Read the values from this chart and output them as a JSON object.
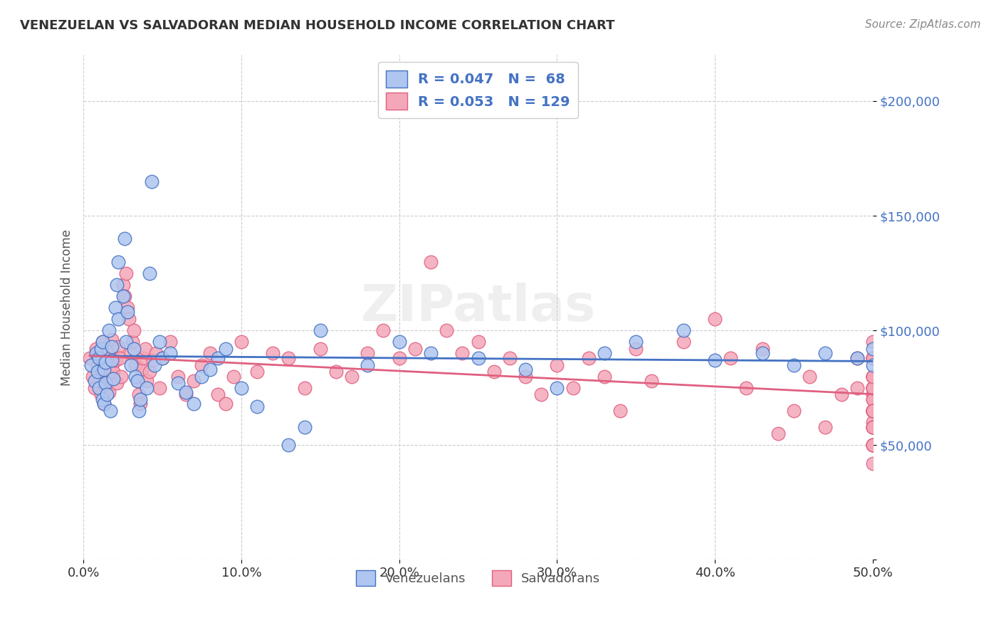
{
  "title": "VENEZUELAN VS SALVADORAN MEDIAN HOUSEHOLD INCOME CORRELATION CHART",
  "source": "Source: ZipAtlas.com",
  "xlabel": "",
  "ylabel": "Median Household Income",
  "xlim": [
    0,
    0.5
  ],
  "ylim": [
    0,
    220000
  ],
  "xtick_labels": [
    "0.0%",
    "10.0%",
    "20.0%",
    "30.0%",
    "40.0%",
    "50.0%"
  ],
  "xtick_vals": [
    0.0,
    0.1,
    0.2,
    0.3,
    0.4,
    0.5
  ],
  "ytick_vals": [
    0,
    50000,
    100000,
    150000,
    200000
  ],
  "ytick_labels": [
    "",
    "$50,000",
    "$100,000",
    "$150,000",
    "$200,000"
  ],
  "venezuelan_color": "#aec6f0",
  "salvadoran_color": "#f4a7b9",
  "venezuelan_line_color": "#4472c4",
  "salvadoran_line_color": "#e06080",
  "watermark": "ZIPatlas",
  "legend_R_venezuelan": "R = 0.047",
  "legend_N_venezuelan": "N =  68",
  "legend_R_salvadoran": "R = 0.053",
  "legend_N_salvadoran": "N = 129",
  "venezuelan_x": [
    0.005,
    0.007,
    0.008,
    0.009,
    0.01,
    0.01,
    0.011,
    0.012,
    0.012,
    0.013,
    0.013,
    0.014,
    0.014,
    0.015,
    0.016,
    0.017,
    0.018,
    0.018,
    0.019,
    0.02,
    0.021,
    0.022,
    0.022,
    0.025,
    0.026,
    0.027,
    0.028,
    0.03,
    0.032,
    0.033,
    0.034,
    0.035,
    0.036,
    0.04,
    0.042,
    0.043,
    0.045,
    0.048,
    0.05,
    0.055,
    0.06,
    0.065,
    0.07,
    0.075,
    0.08,
    0.085,
    0.09,
    0.1,
    0.11,
    0.13,
    0.14,
    0.15,
    0.18,
    0.2,
    0.22,
    0.25,
    0.28,
    0.3,
    0.33,
    0.35,
    0.38,
    0.4,
    0.43,
    0.45,
    0.47,
    0.49,
    0.5,
    0.5
  ],
  "venezuelan_y": [
    85000,
    78000,
    90000,
    82000,
    75000,
    88000,
    92000,
    70000,
    95000,
    68000,
    83000,
    77000,
    86000,
    72000,
    100000,
    65000,
    93000,
    87000,
    79000,
    110000,
    120000,
    130000,
    105000,
    115000,
    140000,
    95000,
    108000,
    85000,
    92000,
    80000,
    78000,
    65000,
    70000,
    75000,
    125000,
    165000,
    85000,
    95000,
    88000,
    90000,
    77000,
    73000,
    68000,
    80000,
    83000,
    88000,
    92000,
    75000,
    67000,
    50000,
    58000,
    100000,
    85000,
    95000,
    90000,
    88000,
    83000,
    75000,
    90000,
    95000,
    100000,
    87000,
    90000,
    85000,
    90000,
    88000,
    85000,
    92000
  ],
  "salvadoran_x": [
    0.004,
    0.006,
    0.007,
    0.008,
    0.009,
    0.01,
    0.01,
    0.011,
    0.012,
    0.012,
    0.013,
    0.013,
    0.014,
    0.015,
    0.016,
    0.016,
    0.017,
    0.018,
    0.018,
    0.019,
    0.02,
    0.021,
    0.022,
    0.023,
    0.024,
    0.025,
    0.026,
    0.027,
    0.028,
    0.029,
    0.03,
    0.031,
    0.032,
    0.033,
    0.034,
    0.035,
    0.036,
    0.037,
    0.038,
    0.039,
    0.04,
    0.042,
    0.044,
    0.046,
    0.048,
    0.05,
    0.055,
    0.06,
    0.065,
    0.07,
    0.075,
    0.08,
    0.085,
    0.09,
    0.095,
    0.1,
    0.11,
    0.12,
    0.13,
    0.14,
    0.15,
    0.16,
    0.17,
    0.18,
    0.19,
    0.2,
    0.21,
    0.22,
    0.23,
    0.24,
    0.25,
    0.26,
    0.27,
    0.28,
    0.29,
    0.3,
    0.31,
    0.32,
    0.33,
    0.34,
    0.35,
    0.36,
    0.38,
    0.4,
    0.41,
    0.42,
    0.43,
    0.44,
    0.45,
    0.46,
    0.47,
    0.48,
    0.49,
    0.49,
    0.5,
    0.5,
    0.5,
    0.5,
    0.5,
    0.5,
    0.5,
    0.5,
    0.5,
    0.5,
    0.5,
    0.5,
    0.5,
    0.5,
    0.5,
    0.5,
    0.5,
    0.5,
    0.5,
    0.5,
    0.5,
    0.5,
    0.5,
    0.5,
    0.5,
    0.5,
    0.5,
    0.5,
    0.5,
    0.5,
    0.5,
    0.5,
    0.5,
    0.5,
    0.5
  ],
  "salvadoran_y": [
    88000,
    80000,
    75000,
    92000,
    85000,
    78000,
    90000,
    72000,
    82000,
    95000,
    68000,
    84000,
    76000,
    88000,
    73000,
    91000,
    79000,
    85000,
    96000,
    82000,
    87000,
    77000,
    93000,
    88000,
    80000,
    120000,
    115000,
    125000,
    110000,
    105000,
    90000,
    95000,
    100000,
    85000,
    78000,
    72000,
    68000,
    83000,
    88000,
    92000,
    78000,
    82000,
    87000,
    90000,
    75000,
    88000,
    95000,
    80000,
    72000,
    78000,
    85000,
    90000,
    72000,
    68000,
    80000,
    95000,
    82000,
    90000,
    88000,
    75000,
    92000,
    82000,
    80000,
    90000,
    100000,
    88000,
    92000,
    130000,
    100000,
    90000,
    95000,
    82000,
    88000,
    80000,
    72000,
    85000,
    75000,
    88000,
    80000,
    65000,
    92000,
    78000,
    95000,
    105000,
    88000,
    75000,
    92000,
    55000,
    65000,
    80000,
    58000,
    72000,
    88000,
    75000,
    88000,
    75000,
    50000,
    88000,
    95000,
    72000,
    60000,
    88000,
    65000,
    70000,
    80000,
    58000,
    65000,
    50000,
    88000,
    42000,
    75000,
    65000,
    80000,
    58000,
    65000,
    50000,
    88000,
    75000,
    65000,
    80000,
    70000,
    58000,
    65000,
    50000,
    75000,
    65000,
    80000,
    58000,
    65000
  ]
}
